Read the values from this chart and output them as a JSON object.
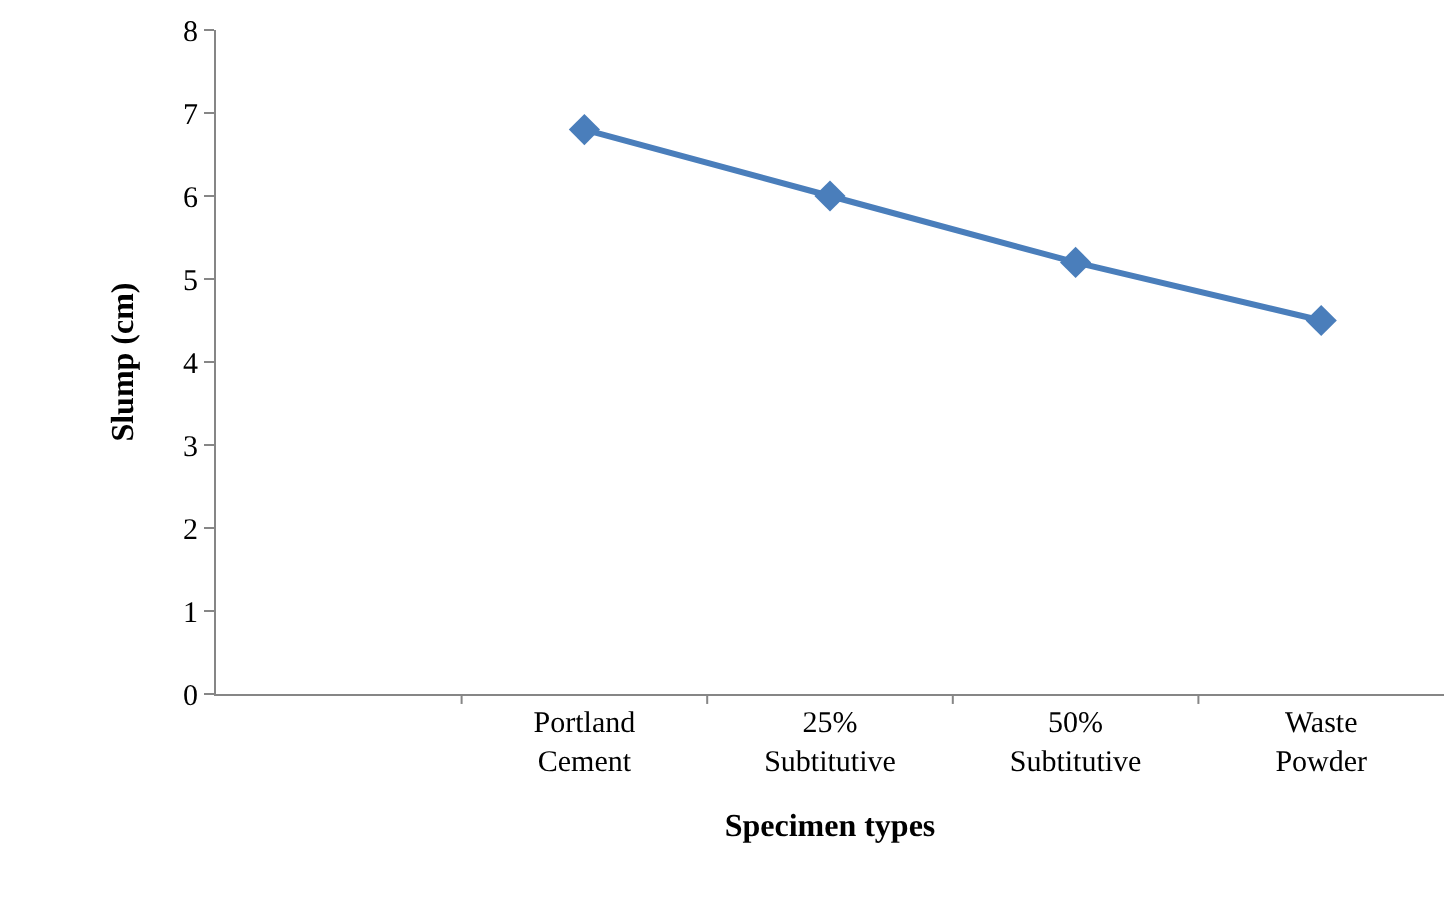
{
  "chart_data": {
    "type": "line",
    "xlabel": "Specimen types",
    "ylabel": "Slump (cm)",
    "categories": [
      null,
      "Portland Cement",
      "25% Subtitutive",
      "50% Subtitutive",
      "Waste Powder"
    ],
    "series": [
      {
        "color": "#4a7ebb",
        "values": [
          null,
          6.8,
          6.0,
          5.2,
          4.5
        ]
      }
    ],
    "ylim": [
      0,
      8
    ],
    "yticks": [
      0,
      1,
      2,
      3,
      4,
      5,
      6,
      7,
      8
    ],
    "grid": false,
    "marker": "diamond",
    "line_style": "solid"
  }
}
